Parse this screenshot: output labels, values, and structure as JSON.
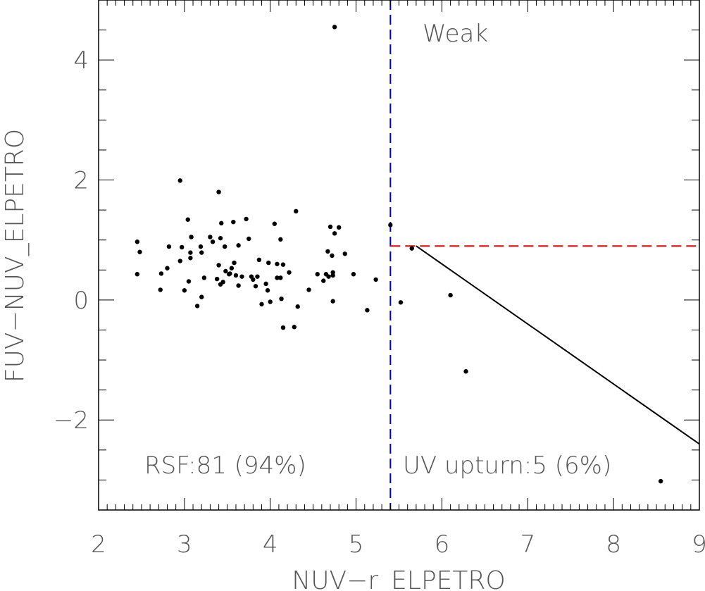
{
  "chart_data": {
    "type": "scatter",
    "title": "",
    "xlabel": "NUV−r_ELPETRO",
    "ylabel": "FUV−NUV_ELPETRO",
    "xlim": [
      2,
      9
    ],
    "ylim": [
      -3.5,
      5
    ],
    "x_ticks": [
      2,
      3,
      4,
      5,
      6,
      7,
      8,
      9
    ],
    "x_tick_labels": [
      "2",
      "3",
      "4",
      "5",
      "6",
      "7",
      "8",
      "9"
    ],
    "y_ticks": [
      -2,
      0,
      2,
      4
    ],
    "y_tick_labels": [
      "−2",
      "0",
      "2",
      "4"
    ],
    "grid": false,
    "annotations": {
      "weak": "Weak",
      "rsf": "RSF:81 (94%)",
      "upturn": "UV upturn:5 (6%)"
    },
    "lines": {
      "blue_vertical_x": 5.4,
      "red_horizontal": {
        "y": 0.9,
        "x_from": 5.4,
        "x_to": 9
      },
      "black_diagonal": {
        "x": [
          5.7,
          9.0
        ],
        "y": [
          0.9,
          -2.4
        ]
      }
    },
    "colors": {
      "points": "#000000",
      "blue_line": "#0000cc",
      "red_line": "#dd0000",
      "black_line": "#000000",
      "axes": "#000000",
      "text": "#555555"
    },
    "points": [
      [
        4.75,
        4.55
      ],
      [
        2.45,
        0.97
      ],
      [
        2.48,
        0.8
      ],
      [
        2.45,
        0.43
      ],
      [
        2.73,
        0.44
      ],
      [
        2.72,
        0.17
      ],
      [
        2.8,
        0.53
      ],
      [
        2.82,
        0.89
      ],
      [
        2.95,
        1.99
      ],
      [
        2.95,
        0.65
      ],
      [
        2.97,
        0.88
      ],
      [
        3.0,
        0.16
      ],
      [
        3.04,
        1.34
      ],
      [
        3.05,
        0.31
      ],
      [
        3.07,
        0.79
      ],
      [
        3.07,
        0.7
      ],
      [
        3.08,
        1.05
      ],
      [
        3.15,
        -0.1
      ],
      [
        3.19,
        0.89
      ],
      [
        3.2,
        0.05
      ],
      [
        3.2,
        0.79
      ],
      [
        3.23,
        0.37
      ],
      [
        3.3,
        1.05
      ],
      [
        3.33,
        0.97
      ],
      [
        3.38,
        0.35
      ],
      [
        3.4,
        0.58
      ],
      [
        3.4,
        1.8
      ],
      [
        3.42,
        1.03
      ],
      [
        3.42,
        0.26
      ],
      [
        3.43,
        1.28
      ],
      [
        3.45,
        0.3
      ],
      [
        3.47,
        0.89
      ],
      [
        3.48,
        0.48
      ],
      [
        3.52,
        0.43
      ],
      [
        3.53,
        0.44
      ],
      [
        3.55,
        0.53
      ],
      [
        3.57,
        1.3
      ],
      [
        3.58,
        0.62
      ],
      [
        3.6,
        0.41
      ],
      [
        3.63,
        0.91
      ],
      [
        3.63,
        0.24
      ],
      [
        3.67,
        0.39
      ],
      [
        3.72,
        1.35
      ],
      [
        3.75,
        1.02
      ],
      [
        3.78,
        0.39
      ],
      [
        3.8,
        0.34
      ],
      [
        3.83,
        0.23
      ],
      [
        3.85,
        0.39
      ],
      [
        3.87,
        0.67
      ],
      [
        3.9,
        -0.07
      ],
      [
        3.95,
        0.27
      ],
      [
        3.97,
        0.16
      ],
      [
        3.98,
        0.62
      ],
      [
        4.0,
        -0.03
      ],
      [
        4.05,
        1.27
      ],
      [
        4.08,
        0.37
      ],
      [
        4.08,
        0.6
      ],
      [
        4.12,
        1.01
      ],
      [
        4.12,
        0.37
      ],
      [
        4.13,
        0.02
      ],
      [
        4.15,
        0.59
      ],
      [
        4.15,
        -0.46
      ],
      [
        4.22,
        0.46
      ],
      [
        4.28,
        -0.45
      ],
      [
        4.3,
        1.48
      ],
      [
        4.32,
        -0.11
      ],
      [
        4.45,
        0.17
      ],
      [
        4.55,
        0.43
      ],
      [
        4.62,
        0.32
      ],
      [
        4.65,
        0.43
      ],
      [
        4.67,
        0.81
      ],
      [
        4.68,
        0.39
      ],
      [
        4.7,
        1.22
      ],
      [
        4.72,
        0.74
      ],
      [
        4.73,
        0.46
      ],
      [
        4.73,
        0.41
      ],
      [
        4.73,
        -0.02
      ],
      [
        4.75,
        1.11
      ],
      [
        4.8,
        1.21
      ],
      [
        4.87,
        0.77
      ],
      [
        4.97,
        0.43
      ],
      [
        5.13,
        -0.17
      ],
      [
        5.23,
        0.34
      ],
      [
        5.4,
        1.25
      ],
      [
        5.52,
        -0.04
      ],
      [
        5.65,
        0.86
      ],
      [
        6.1,
        0.08
      ],
      [
        6.28,
        -1.19
      ],
      [
        8.55,
        -3.02
      ]
    ]
  }
}
